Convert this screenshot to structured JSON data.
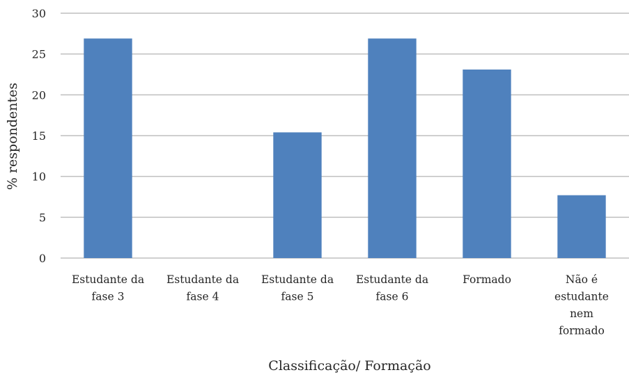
{
  "chart_data": {
    "type": "bar",
    "categories": [
      [
        "Estudante da",
        "fase 3"
      ],
      [
        "Estudante da",
        "fase 4"
      ],
      [
        "Estudante da",
        "fase 5"
      ],
      [
        "Estudante da",
        "fase 6"
      ],
      [
        "Formado"
      ],
      [
        "Não é",
        "estudante",
        "nem",
        "formado"
      ]
    ],
    "values": [
      26.9,
      0,
      15.4,
      26.9,
      23.1,
      7.7
    ],
    "title": "",
    "xlabel": "Classificação/ Formação",
    "ylabel": "% respondentes",
    "ylim": [
      0,
      30
    ],
    "yticks": [
      "0",
      "5",
      "10",
      "15",
      "20",
      "25",
      "30"
    ],
    "grid": true,
    "legend": "none",
    "colors": {
      "bar": "#4f81bd",
      "grid": "#bfbfbf",
      "text": "#262626"
    }
  }
}
